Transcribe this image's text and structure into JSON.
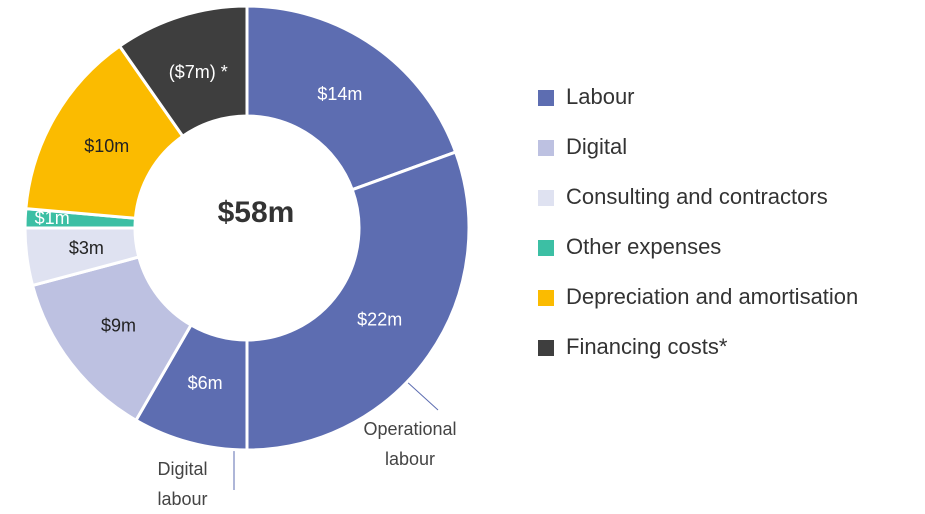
{
  "chart_data": {
    "type": "donut",
    "center_label": "$58m",
    "values": [
      14,
      22,
      6,
      9,
      3,
      1,
      10,
      -7
    ],
    "value_labels": [
      "$14m",
      "$22m",
      "$6m",
      "$9m",
      "$3m",
      "$1m",
      "$10m",
      "($7m) *"
    ],
    "colors": [
      "#5d6db1",
      "#5d6db1",
      "#5d6db1",
      "#bdc1e1",
      "#dfe2f1",
      "#3cbfa4",
      "#fbbb00",
      "#3e3e3e"
    ],
    "legend": [
      {
        "name": "Labour",
        "color": "#5d6db1"
      },
      {
        "name": "Digital",
        "color": "#bdc1e1"
      },
      {
        "name": "Consulting and contractors",
        "color": "#dfe2f1"
      },
      {
        "name": "Other expenses",
        "color": "#3cbfa4"
      },
      {
        "name": "Depreciation and amortisation",
        "color": "#fbbb00"
      },
      {
        "name": "Financing costs*",
        "color": "#3e3e3e"
      }
    ],
    "annotations": [
      "Operational labour",
      "Digital labour"
    ]
  }
}
